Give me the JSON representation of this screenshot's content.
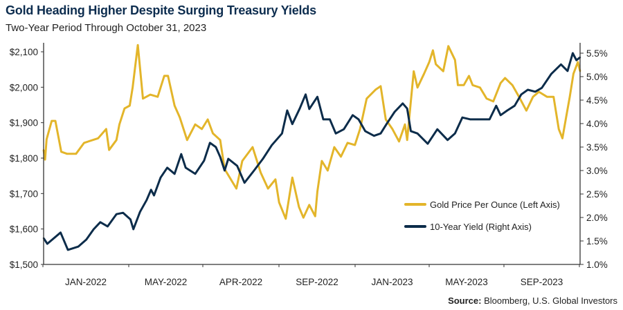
{
  "header": {
    "title": "Gold Heading Higher Despite Surging Treasury Yields",
    "subtitle": "Two-Year Period Through October 31, 2023"
  },
  "footer": {
    "source_label": "Source:",
    "source_text": " Bloomberg, U.S. Global Investors"
  },
  "chart_data": {
    "type": "line",
    "title": "Gold Heading Higher Despite Surging Treasury Yields",
    "subtitle": "Two-Year Period Through October 31, 2023",
    "xlim": [
      "2021-11-01",
      "2023-10-31"
    ],
    "x_tick_labels": [
      "JAN-2022",
      "MAY-2022",
      "APR-2022",
      "SEP-2022",
      "JAN-2023",
      "MAY-2023",
      "SEP-2023"
    ],
    "y_left": {
      "lim": [
        1500,
        2120
      ],
      "tick_values": [
        1500,
        1600,
        1700,
        1800,
        1900,
        2000,
        2100
      ],
      "tick_labels": [
        "$1,500",
        "$1,600",
        "$1,700",
        "$1,800",
        "$1,900",
        "$2,000",
        "$2,100"
      ]
    },
    "y_right": {
      "lim": [
        1.0,
        5.7
      ],
      "tick_values": [
        1.0,
        1.5,
        2.0,
        2.5,
        3.0,
        3.5,
        4.0,
        4.5,
        5.0,
        5.5
      ],
      "tick_labels": [
        "1.0%",
        "1.5%",
        "2.0%",
        "2.5%",
        "3.0%",
        "3.5%",
        "4.0%",
        "4.5%",
        "5.0%",
        "5.5%"
      ]
    },
    "grid": false,
    "legend_position": "bottom-right",
    "series": [
      {
        "name": "Gold Price Per Ounce (Left Axis)",
        "axis": "left",
        "color": "#e3b52a",
        "points": [
          [
            "2021-11-01",
            1823
          ],
          [
            "2021-11-03",
            1796
          ],
          [
            "2021-11-05",
            1853
          ],
          [
            "2021-11-12",
            1905
          ],
          [
            "2021-11-17",
            1905
          ],
          [
            "2021-11-25",
            1818
          ],
          [
            "2021-12-03",
            1812
          ],
          [
            "2021-12-15",
            1812
          ],
          [
            "2021-12-26",
            1843
          ],
          [
            "2022-01-14",
            1856
          ],
          [
            "2022-01-25",
            1882
          ],
          [
            "2022-01-29",
            1823
          ],
          [
            "2022-02-08",
            1851
          ],
          [
            "2022-02-12",
            1895
          ],
          [
            "2022-02-19",
            1940
          ],
          [
            "2022-02-26",
            1948
          ],
          [
            "2022-03-02",
            1999
          ],
          [
            "2022-03-09",
            2119
          ],
          [
            "2022-03-16",
            1968
          ],
          [
            "2022-03-26",
            1979
          ],
          [
            "2022-04-05",
            1973
          ],
          [
            "2022-04-14",
            2032
          ],
          [
            "2022-04-19",
            2032
          ],
          [
            "2022-04-28",
            1948
          ],
          [
            "2022-05-05",
            1915
          ],
          [
            "2022-05-15",
            1851
          ],
          [
            "2022-05-26",
            1895
          ],
          [
            "2022-06-04",
            1882
          ],
          [
            "2022-06-12",
            1909
          ],
          [
            "2022-06-19",
            1870
          ],
          [
            "2022-06-29",
            1851
          ],
          [
            "2022-07-05",
            1769
          ],
          [
            "2022-07-21",
            1714
          ],
          [
            "2022-07-29",
            1792
          ],
          [
            "2022-08-12",
            1831
          ],
          [
            "2022-08-23",
            1759
          ],
          [
            "2022-09-02",
            1714
          ],
          [
            "2022-09-12",
            1740
          ],
          [
            "2022-09-17",
            1675
          ],
          [
            "2022-09-26",
            1629
          ],
          [
            "2022-10-05",
            1745
          ],
          [
            "2022-10-14",
            1662
          ],
          [
            "2022-10-20",
            1632
          ],
          [
            "2022-10-28",
            1668
          ],
          [
            "2022-11-05",
            1636
          ],
          [
            "2022-11-08",
            1706
          ],
          [
            "2022-11-14",
            1792
          ],
          [
            "2022-11-22",
            1765
          ],
          [
            "2022-12-01",
            1831
          ],
          [
            "2022-12-10",
            1804
          ],
          [
            "2022-12-19",
            1843
          ],
          [
            "2022-12-29",
            1837
          ],
          [
            "2023-01-05",
            1882
          ],
          [
            "2023-01-14",
            1968
          ],
          [
            "2023-01-26",
            1993
          ],
          [
            "2023-02-02",
            2003
          ],
          [
            "2023-02-09",
            1909
          ],
          [
            "2023-02-18",
            1882
          ],
          [
            "2023-02-27",
            1847
          ],
          [
            "2023-03-07",
            1895
          ],
          [
            "2023-03-10",
            1851
          ],
          [
            "2023-03-15",
            1960
          ],
          [
            "2023-03-19",
            2045
          ],
          [
            "2023-03-24",
            1999
          ],
          [
            "2023-04-02",
            2038
          ],
          [
            "2023-04-09",
            2071
          ],
          [
            "2023-04-14",
            2104
          ],
          [
            "2023-04-18",
            2065
          ],
          [
            "2023-04-28",
            2045
          ],
          [
            "2023-05-05",
            2116
          ],
          [
            "2023-05-14",
            2077
          ],
          [
            "2023-05-18",
            2006
          ],
          [
            "2023-05-26",
            2006
          ],
          [
            "2023-06-02",
            2032
          ],
          [
            "2023-06-07",
            2006
          ],
          [
            "2023-06-17",
            1999
          ],
          [
            "2023-06-26",
            1968
          ],
          [
            "2023-07-05",
            1960
          ],
          [
            "2023-07-15",
            2012
          ],
          [
            "2023-07-21",
            2026
          ],
          [
            "2023-07-31",
            2006
          ],
          [
            "2023-08-09",
            1973
          ],
          [
            "2023-08-19",
            1934
          ],
          [
            "2023-08-28",
            1973
          ],
          [
            "2023-09-05",
            1987
          ],
          [
            "2023-09-16",
            1973
          ],
          [
            "2023-09-25",
            1973
          ],
          [
            "2023-10-02",
            1882
          ],
          [
            "2023-10-07",
            1856
          ],
          [
            "2023-10-12",
            1915
          ],
          [
            "2023-10-17",
            1973
          ],
          [
            "2023-10-22",
            2038
          ],
          [
            "2023-10-28",
            2071
          ],
          [
            "2023-10-31",
            2045
          ]
        ]
      },
      {
        "name": "10-Year Yield (Right Axis)",
        "axis": "right",
        "color": "#0c2c4a",
        "points": [
          [
            "2021-11-01",
            1.56
          ],
          [
            "2021-11-06",
            1.44
          ],
          [
            "2021-11-24",
            1.68
          ],
          [
            "2021-12-04",
            1.31
          ],
          [
            "2021-12-18",
            1.38
          ],
          [
            "2021-12-29",
            1.53
          ],
          [
            "2022-01-08",
            1.75
          ],
          [
            "2022-01-17",
            1.9
          ],
          [
            "2022-01-27",
            1.81
          ],
          [
            "2022-02-08",
            2.07
          ],
          [
            "2022-02-17",
            2.1
          ],
          [
            "2022-02-27",
            1.96
          ],
          [
            "2022-03-03",
            1.75
          ],
          [
            "2022-03-12",
            2.12
          ],
          [
            "2022-03-21",
            2.37
          ],
          [
            "2022-03-27",
            2.59
          ],
          [
            "2022-03-31",
            2.47
          ],
          [
            "2022-04-09",
            2.85
          ],
          [
            "2022-04-18",
            3.06
          ],
          [
            "2022-04-28",
            2.93
          ],
          [
            "2022-05-07",
            3.35
          ],
          [
            "2022-05-13",
            3.06
          ],
          [
            "2022-05-26",
            2.93
          ],
          [
            "2022-06-07",
            3.21
          ],
          [
            "2022-06-15",
            3.59
          ],
          [
            "2022-06-23",
            3.5
          ],
          [
            "2022-06-29",
            3.29
          ],
          [
            "2022-07-05",
            3.0
          ],
          [
            "2022-07-10",
            3.25
          ],
          [
            "2022-07-22",
            3.1
          ],
          [
            "2022-08-01",
            2.74
          ],
          [
            "2022-08-14",
            3.0
          ],
          [
            "2022-08-26",
            3.25
          ],
          [
            "2022-09-07",
            3.54
          ],
          [
            "2022-09-21",
            3.79
          ],
          [
            "2022-09-28",
            4.28
          ],
          [
            "2022-10-05",
            3.99
          ],
          [
            "2022-10-15",
            4.32
          ],
          [
            "2022-10-23",
            4.62
          ],
          [
            "2022-10-28",
            4.31
          ],
          [
            "2022-11-08",
            4.57
          ],
          [
            "2022-11-16",
            4.09
          ],
          [
            "2022-11-25",
            4.09
          ],
          [
            "2022-12-03",
            3.79
          ],
          [
            "2022-12-14",
            3.88
          ],
          [
            "2022-12-26",
            4.18
          ],
          [
            "2023-01-03",
            4.09
          ],
          [
            "2023-01-12",
            3.84
          ],
          [
            "2023-01-24",
            3.74
          ],
          [
            "2023-02-02",
            3.79
          ],
          [
            "2023-02-10",
            3.99
          ],
          [
            "2023-02-21",
            4.25
          ],
          [
            "2023-03-04",
            4.43
          ],
          [
            "2023-03-10",
            4.32
          ],
          [
            "2023-03-15",
            3.84
          ],
          [
            "2023-03-24",
            3.79
          ],
          [
            "2023-04-07",
            3.57
          ],
          [
            "2023-04-20",
            3.88
          ],
          [
            "2023-05-04",
            3.65
          ],
          [
            "2023-05-14",
            3.79
          ],
          [
            "2023-05-24",
            4.13
          ],
          [
            "2023-06-04",
            4.09
          ],
          [
            "2023-06-14",
            4.09
          ],
          [
            "2023-06-30",
            4.09
          ],
          [
            "2023-07-09",
            4.38
          ],
          [
            "2023-07-15",
            4.18
          ],
          [
            "2023-07-24",
            4.28
          ],
          [
            "2023-08-03",
            4.38
          ],
          [
            "2023-08-12",
            4.62
          ],
          [
            "2023-08-21",
            4.72
          ],
          [
            "2023-08-31",
            4.68
          ],
          [
            "2023-09-09",
            4.76
          ],
          [
            "2023-09-22",
            5.06
          ],
          [
            "2023-10-05",
            5.26
          ],
          [
            "2023-10-14",
            5.12
          ],
          [
            "2023-10-21",
            5.5
          ],
          [
            "2023-10-26",
            5.35
          ],
          [
            "2023-10-31",
            5.41
          ]
        ]
      }
    ]
  }
}
